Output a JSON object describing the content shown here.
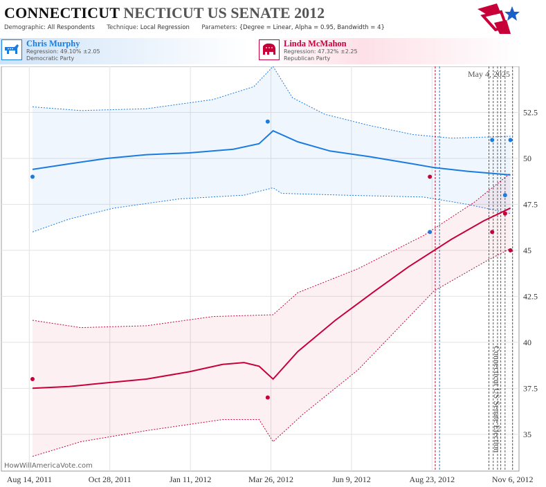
{
  "header": {
    "title_main": "CONNECTICUT",
    "title_sub": "NECTICUT US SENATE 2012",
    "demographic_label": "Demographic:",
    "demographic_value": "All Respondents",
    "technique_label": "Technique:",
    "technique_value": "Local Regression",
    "parameters_label": "Parameters:",
    "parameters_value": "{Degree = Linear, Alpha = 0.95, Bandwidth = 4}"
  },
  "candidates": [
    {
      "name": "Chris Murphy",
      "regression": "Regression: 49.10% ±2.05",
      "party": "Democratic Party",
      "color": "#1a7be0"
    },
    {
      "name": "Linda McMahon",
      "regression": "Regression: 47.32% ±2.25",
      "party": "Republican Party",
      "color": "#c8003a"
    }
  ],
  "datestamp": "May 4, 2025",
  "election_label": "Connecticut US Senate Election",
  "credit": "HowWillAmericaVote.com",
  "chart_data": {
    "type": "line",
    "x_tick_labels": [
      "Aug 14, 2011",
      "Oct 28, 2011",
      "Jan 11, 2012",
      "Mar 26, 2012",
      "Jun 9, 2012",
      "Aug 23, 2012",
      "Nov 6, 2012"
    ],
    "x_range": [
      "2011-07-19",
      "2012-11-12"
    ],
    "y_ticks": [
      35,
      37.5,
      40,
      42.5,
      45,
      47.5,
      50,
      52.5
    ],
    "ylim": [
      33,
      55
    ],
    "grid": true,
    "series": [
      {
        "name": "Chris Murphy",
        "color": "#1a7be0",
        "trend": [
          [
            "2011-08-17",
            49.4
          ],
          [
            "2011-09-20",
            49.7
          ],
          [
            "2011-10-25",
            50.0
          ],
          [
            "2011-12-01",
            50.2
          ],
          [
            "2012-01-10",
            50.3
          ],
          [
            "2012-02-20",
            50.5
          ],
          [
            "2012-03-15",
            50.8
          ],
          [
            "2012-03-28",
            51.5
          ],
          [
            "2012-04-20",
            50.9
          ],
          [
            "2012-05-20",
            50.4
          ],
          [
            "2012-06-25",
            50.1
          ],
          [
            "2012-08-05",
            49.7
          ],
          [
            "2012-08-25",
            49.5
          ],
          [
            "2012-09-25",
            49.3
          ],
          [
            "2012-11-04",
            49.1
          ]
        ],
        "upper": [
          [
            "2011-08-17",
            52.8
          ],
          [
            "2011-10-01",
            52.6
          ],
          [
            "2011-12-01",
            52.7
          ],
          [
            "2012-02-01",
            53.2
          ],
          [
            "2012-03-10",
            53.9
          ],
          [
            "2012-03-28",
            55.0
          ],
          [
            "2012-04-15",
            53.3
          ],
          [
            "2012-05-15",
            52.4
          ],
          [
            "2012-06-25",
            51.8
          ],
          [
            "2012-08-05",
            51.3
          ],
          [
            "2012-09-10",
            51.1
          ],
          [
            "2012-11-04",
            51.2
          ]
        ],
        "lower": [
          [
            "2011-08-17",
            46.0
          ],
          [
            "2011-09-20",
            46.7
          ],
          [
            "2011-11-01",
            47.3
          ],
          [
            "2012-01-01",
            47.8
          ],
          [
            "2012-03-01",
            48.0
          ],
          [
            "2012-03-28",
            48.4
          ],
          [
            "2012-04-05",
            48.1
          ],
          [
            "2012-06-01",
            48.0
          ],
          [
            "2012-08-15",
            47.9
          ],
          [
            "2012-09-25",
            47.5
          ],
          [
            "2012-11-04",
            47.0
          ]
        ],
        "polls": [
          [
            "2011-08-17",
            49
          ],
          [
            "2012-03-23",
            52
          ],
          [
            "2012-08-21",
            46
          ],
          [
            "2012-10-18",
            51
          ],
          [
            "2012-10-30",
            48
          ],
          [
            "2012-11-04",
            51
          ]
        ]
      },
      {
        "name": "Linda McMahon",
        "color": "#c8003a",
        "trend": [
          [
            "2011-08-17",
            37.5
          ],
          [
            "2011-09-20",
            37.6
          ],
          [
            "2011-10-25",
            37.8
          ],
          [
            "2011-12-01",
            38.0
          ],
          [
            "2012-01-10",
            38.4
          ],
          [
            "2012-02-10",
            38.8
          ],
          [
            "2012-03-01",
            38.9
          ],
          [
            "2012-03-15",
            38.7
          ],
          [
            "2012-03-28",
            38.0
          ],
          [
            "2012-04-20",
            39.5
          ],
          [
            "2012-05-25",
            41.2
          ],
          [
            "2012-07-01",
            42.8
          ],
          [
            "2012-08-01",
            44.1
          ],
          [
            "2012-09-10",
            45.6
          ],
          [
            "2012-10-10",
            46.6
          ],
          [
            "2012-11-04",
            47.3
          ]
        ],
        "upper": [
          [
            "2011-08-17",
            41.2
          ],
          [
            "2011-10-01",
            40.8
          ],
          [
            "2011-12-01",
            40.9
          ],
          [
            "2012-02-01",
            41.4
          ],
          [
            "2012-03-28",
            41.5
          ],
          [
            "2012-04-20",
            42.7
          ],
          [
            "2012-06-15",
            44.0
          ],
          [
            "2012-08-15",
            45.8
          ],
          [
            "2012-10-01",
            47.6
          ],
          [
            "2012-11-04",
            49.2
          ]
        ],
        "lower": [
          [
            "2011-08-17",
            33.8
          ],
          [
            "2011-10-01",
            34.6
          ],
          [
            "2011-12-01",
            35.2
          ],
          [
            "2012-02-10",
            35.8
          ],
          [
            "2012-03-15",
            35.8
          ],
          [
            "2012-03-28",
            34.6
          ],
          [
            "2012-04-25",
            36.1
          ],
          [
            "2012-06-15",
            38.5
          ],
          [
            "2012-08-25",
            42.8
          ],
          [
            "2012-10-15",
            44.5
          ],
          [
            "2012-11-04",
            45.1
          ]
        ],
        "polls": [
          [
            "2011-08-17",
            38
          ],
          [
            "2012-03-23",
            37
          ],
          [
            "2012-08-21",
            49
          ],
          [
            "2012-10-18",
            46
          ],
          [
            "2012-10-30",
            47
          ],
          [
            "2012-11-04",
            45
          ]
        ]
      }
    ],
    "poll_date_lines": [
      {
        "date": "2012-08-26",
        "color": "#c8003a"
      },
      {
        "date": "2012-08-30",
        "color": "#1a7be0"
      },
      {
        "date": "2012-10-15",
        "color": "#555"
      },
      {
        "date": "2012-10-19",
        "color": "#555"
      },
      {
        "date": "2012-10-23",
        "color": "#555"
      },
      {
        "date": "2012-10-26",
        "color": "#555"
      },
      {
        "date": "2012-10-30",
        "color": "#555"
      },
      {
        "date": "2012-11-06",
        "color": "#555"
      }
    ]
  }
}
